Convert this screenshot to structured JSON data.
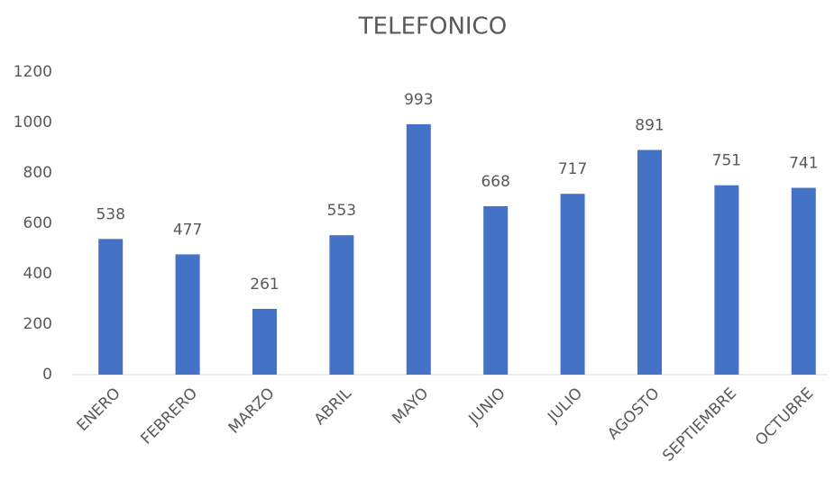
{
  "chart_data": {
    "type": "bar",
    "title": "TELEFONICO",
    "categories": [
      "ENERO",
      "FEBRERO",
      "MARZO",
      "ABRIL",
      "MAYO",
      "JUNIO",
      "JULIO",
      "AGOSTO",
      "SEPTIEMBRE",
      "OCTUBRE"
    ],
    "values": [
      538,
      477,
      261,
      553,
      993,
      668,
      717,
      891,
      751,
      741
    ],
    "color": "#4472c4",
    "ylim": [
      0,
      1200
    ],
    "yticks": [
      0,
      200,
      400,
      600,
      800,
      1000,
      1200
    ],
    "grid": false
  }
}
